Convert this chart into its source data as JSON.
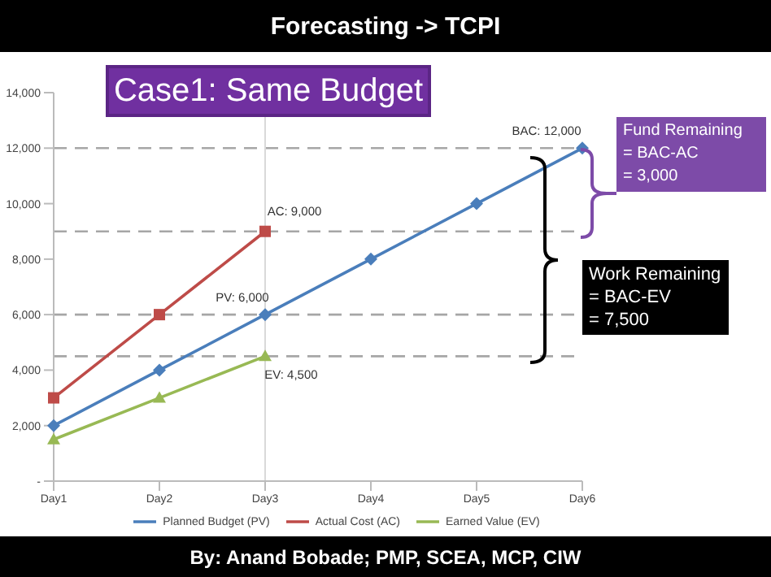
{
  "chart_data": {
    "type": "line",
    "title": "Forecasting -> TCPI",
    "categories": [
      "Day1",
      "Day2",
      "Day3",
      "Day4",
      "Day5",
      "Day6"
    ],
    "series": [
      {
        "name": "Planned Budget (PV)",
        "color": "#4a7ebb",
        "marker": "diamond",
        "values": [
          2000,
          4000,
          6000,
          8000,
          10000,
          12000
        ]
      },
      {
        "name": "Actual Cost (AC)",
        "color": "#be4b48",
        "marker": "square",
        "values": [
          3000,
          6000,
          9000,
          null,
          null,
          null
        ]
      },
      {
        "name": "Earned Value (EV)",
        "color": "#98b954",
        "marker": "triangle",
        "values": [
          1500,
          3000,
          4500,
          null,
          null,
          null
        ]
      }
    ],
    "ylim": [
      0,
      14000
    ],
    "yticks": [
      {
        "value": 0,
        "label": "-"
      },
      {
        "value": 2000,
        "label": "2,000"
      },
      {
        "value": 4000,
        "label": "4,000"
      },
      {
        "value": 6000,
        "label": "6,000"
      },
      {
        "value": 8000,
        "label": "8,000"
      },
      {
        "value": 10000,
        "label": "10,000"
      },
      {
        "value": 12000,
        "label": "12,000"
      },
      {
        "value": 14000,
        "label": "14,000"
      }
    ],
    "legend": "bottom",
    "line_style": "solid",
    "ref_lines": [
      {
        "axis": "y",
        "value": 12000,
        "color": "#a6a6a6",
        "line_style": "dashed"
      },
      {
        "axis": "y",
        "value": 9000,
        "color": "#a6a6a6",
        "line_style": "dashed"
      },
      {
        "axis": "y",
        "value": 6000,
        "color": "#a6a6a6",
        "line_style": "dashed"
      },
      {
        "axis": "y",
        "value": 4500,
        "color": "#a6a6a6",
        "line_style": "dashed"
      },
      {
        "axis": "x",
        "value": "Day3",
        "color": "#d9d9d9",
        "line_style": "solid"
      }
    ],
    "annotations": [
      "Case1: Same Budget",
      "Fund Remaining\n= BAC-AC\n= 3,000",
      "Work Remaining\n= BAC-EV\n= 7,500",
      "By: Anand Bobade; PMP, SCEA, MCP, CIW",
      {
        "text": "BAC: 12,000",
        "x": "Day6",
        "y": 12000
      },
      {
        "text": "AC: 9,000",
        "x": "Day3",
        "y": 9000
      },
      {
        "text": "PV: 6,000",
        "x": "Day3",
        "y": 6000
      },
      {
        "text": "EV: 4,500",
        "x": "Day3",
        "y": 4500
      }
    ]
  }
}
